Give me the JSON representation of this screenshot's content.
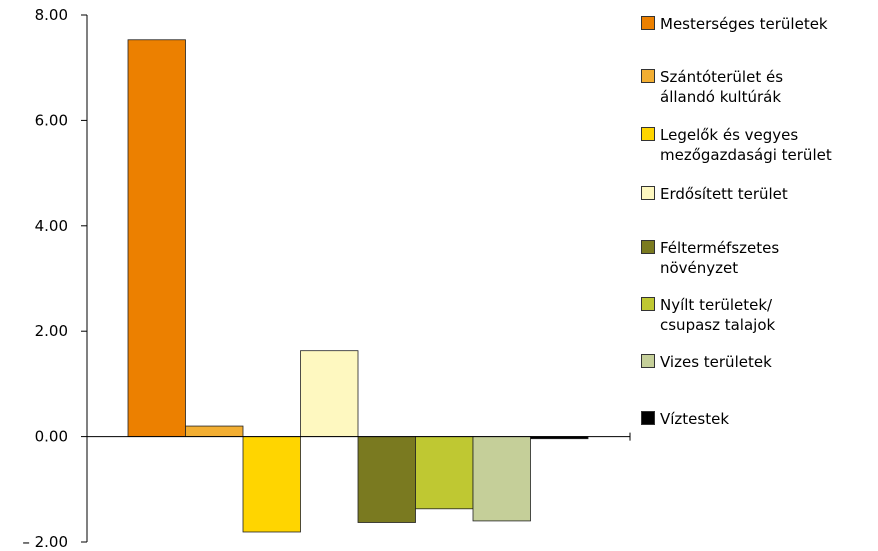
{
  "chart_data": {
    "type": "bar",
    "categories": [
      "Mesterséges területek",
      "Szántóterület és\nállandó kultúrák",
      "Legelők és vegyes\nmezőgazdasági terület",
      "Erdősített terület",
      "Félterméfszetes\nnövényzet",
      "Nyílt területek/\ncsupasz talajok",
      "Vizes területek",
      "Víztestek"
    ],
    "values": [
      7.53,
      0.2,
      -1.81,
      1.63,
      -1.63,
      -1.37,
      -1.6,
      -0.04
    ],
    "colors": [
      "#EC8000",
      "#F2AE32",
      "#FFD500",
      "#FEF8C0",
      "#7A7A20",
      "#BFC832",
      "#C5CF99",
      "#000000"
    ],
    "ylim": [
      -2,
      8
    ],
    "yticks": [
      "8.00",
      "6.00",
      "4.00",
      "2.00",
      "0.00",
      "– 2.00"
    ],
    "ytick_values": [
      8,
      6,
      4,
      2,
      0,
      -2
    ],
    "grid": false,
    "legend_position": "right",
    "title": "",
    "xlabel": "",
    "ylabel": ""
  }
}
